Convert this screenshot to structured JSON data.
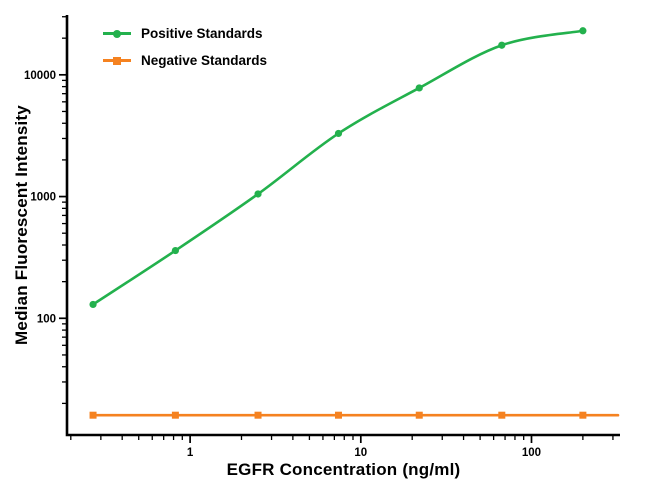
{
  "chart_data": {
    "type": "line",
    "title": "",
    "xlabel": "EGFR Concentration (ng/ml)",
    "ylabel": "Median Fluorescent Intensity",
    "xscale": "log",
    "yscale": "log",
    "xlim": [
      0.19,
      330
    ],
    "ylim": [
      11,
      31000
    ],
    "x_major_ticks": [
      1,
      10,
      100
    ],
    "y_major_ticks": [
      100,
      1000,
      10000
    ],
    "grid": false,
    "legend_position": "top-left-inside",
    "axis_color": "#000000",
    "background": "#ffffff",
    "series": [
      {
        "name": "Positive Standards",
        "color": "#23b14d",
        "marker": "circle",
        "smooth": true,
        "extend_right": false,
        "x": [
          0.27,
          0.82,
          2.5,
          7.4,
          22,
          67,
          200
        ],
        "y": [
          130,
          360,
          1050,
          3300,
          7800,
          17500,
          23000
        ]
      },
      {
        "name": "Negative Standards",
        "color": "#f58220",
        "marker": "square",
        "smooth": false,
        "extend_right": true,
        "x": [
          0.27,
          0.82,
          2.5,
          7.4,
          22,
          67,
          200
        ],
        "y": [
          16,
          16,
          16,
          16,
          16,
          16,
          16
        ]
      }
    ]
  }
}
